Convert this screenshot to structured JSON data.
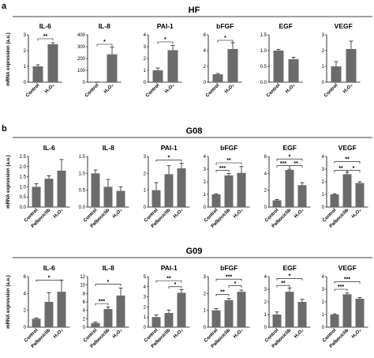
{
  "figure": {
    "panel_a_letter": "a",
    "panel_b_letter": "b",
    "sections": [
      "HF",
      "G08",
      "G09"
    ],
    "ylabel": "mRNA expression (a.u.)"
  },
  "colors": {
    "bar": "#6b6b6b",
    "axis": "#000000"
  },
  "chart_data": [
    {
      "section": "HF",
      "title": "IL-6",
      "type": "bar",
      "categories": [
        "Control",
        "H₂O₂"
      ],
      "values": [
        1.0,
        2.4
      ],
      "errors": [
        0.1,
        0.1
      ],
      "ylim": [
        0,
        3
      ],
      "ticks": [
        "0",
        "1",
        "2",
        "3"
      ],
      "sig": [
        {
          "from": 0,
          "to": 1,
          "label": "**",
          "level": 2.75
        }
      ]
    },
    {
      "section": "HF",
      "title": "IL-8",
      "type": "bar",
      "categories": [
        "Control",
        "H₂O₂"
      ],
      "values": [
        1.0,
        235
      ],
      "errors": [
        0.3,
        60
      ],
      "ylim": [
        0,
        400
      ],
      "ticks": [
        "0",
        "100",
        "200",
        "300",
        "400"
      ],
      "sig": [
        {
          "from": 0,
          "to": 1,
          "label": "*",
          "level": 320
        }
      ]
    },
    {
      "section": "HF",
      "title": "PAI-1",
      "type": "bar",
      "categories": [
        "Control",
        "H₂O₂"
      ],
      "values": [
        1.0,
        2.7
      ],
      "errors": [
        0.2,
        0.4
      ],
      "ylim": [
        0,
        4
      ],
      "ticks": [
        "0",
        "1",
        "2",
        "3",
        "4"
      ],
      "sig": [
        {
          "from": 0,
          "to": 1,
          "label": "*",
          "level": 3.4
        }
      ]
    },
    {
      "section": "HF",
      "title": "bFGF",
      "type": "bar",
      "categories": [
        "Control",
        "H₂O₂"
      ],
      "values": [
        1.0,
        4.2
      ],
      "errors": [
        0.1,
        0.8
      ],
      "ylim": [
        0,
        6
      ],
      "ticks": [
        "0",
        "2",
        "4",
        "6"
      ],
      "sig": [
        {
          "from": 0,
          "to": 1,
          "label": "*",
          "level": 5.3
        }
      ]
    },
    {
      "section": "HF",
      "title": "EGF",
      "type": "bar",
      "categories": [
        "Control",
        "H₂O₂"
      ],
      "values": [
        1.0,
        0.73
      ],
      "errors": [
        0.04,
        0.06
      ],
      "ylim": [
        0,
        1.5
      ],
      "ticks": [
        "0.0",
        "0.5",
        "1.0",
        "1.5"
      ],
      "sig": []
    },
    {
      "section": "HF",
      "title": "VEGF",
      "type": "bar",
      "categories": [
        "Control",
        "H₂O₂"
      ],
      "values": [
        1.0,
        2.1
      ],
      "errors": [
        0.3,
        0.5
      ],
      "ylim": [
        0,
        3
      ],
      "ticks": [
        "0",
        "1",
        "2",
        "3"
      ],
      "sig": []
    },
    {
      "section": "G08",
      "title": "IL-6",
      "type": "bar",
      "categories": [
        "Control",
        "Palbociclib",
        "H₂O₂"
      ],
      "values": [
        1.0,
        1.4,
        1.8
      ],
      "errors": [
        0.15,
        0.15,
        0.55
      ],
      "ylim": [
        0,
        2.5
      ],
      "ticks": [
        "0.0",
        "0.5",
        "1.0",
        "1.5",
        "2.0",
        "2.5"
      ],
      "sig": []
    },
    {
      "section": "G08",
      "title": "IL-8",
      "type": "bar",
      "categories": [
        "Control",
        "Palbociclib",
        "H₂O₂"
      ],
      "values": [
        1.0,
        0.6,
        0.48
      ],
      "errors": [
        0.1,
        0.22,
        0.12
      ],
      "ylim": [
        0,
        1.5
      ],
      "ticks": [
        "0.0",
        "0.5",
        "1.0",
        "1.5"
      ],
      "sig": []
    },
    {
      "section": "G08",
      "title": "PAI-1",
      "type": "bar",
      "categories": [
        "Control",
        "Palbociclib",
        "H₂O₂"
      ],
      "values": [
        1.0,
        1.95,
        2.3
      ],
      "errors": [
        0.45,
        0.5,
        0.3
      ],
      "ylim": [
        0,
        3
      ],
      "ticks": [
        "0",
        "1",
        "2",
        "3"
      ],
      "sig": [
        {
          "from": 0,
          "to": 2,
          "label": "*",
          "level": 2.8
        }
      ]
    },
    {
      "section": "G08",
      "title": "bFGF",
      "type": "bar",
      "categories": [
        "Control",
        "Palbociclib",
        "H₂O₂"
      ],
      "values": [
        1.0,
        2.5,
        2.7
      ],
      "errors": [
        0.05,
        0.15,
        0.5
      ],
      "ylim": [
        0,
        4
      ],
      "ticks": [
        "0",
        "1",
        "2",
        "3",
        "4"
      ],
      "sig": [
        {
          "from": 0,
          "to": 1,
          "label": "***",
          "level": 2.9
        },
        {
          "from": 0,
          "to": 2,
          "label": "**",
          "level": 3.5
        }
      ]
    },
    {
      "section": "G08",
      "title": "EGF",
      "type": "bar",
      "categories": [
        "Control",
        "Palbociclib",
        "H₂O₂"
      ],
      "values": [
        0.8,
        4.4,
        2.6
      ],
      "errors": [
        0.1,
        0.1,
        0.3
      ],
      "ylim": [
        0,
        6
      ],
      "ticks": [
        "0",
        "2",
        "4",
        "6"
      ],
      "sig": [
        {
          "from": 0,
          "to": 1,
          "label": "***",
          "level": 4.9
        },
        {
          "from": 1,
          "to": 2,
          "label": "**",
          "level": 4.9
        },
        {
          "from": 0,
          "to": 2,
          "label": "*",
          "level": 5.7
        }
      ]
    },
    {
      "section": "G08",
      "title": "VEGF",
      "type": "bar",
      "categories": [
        "Control",
        "Palbociclib",
        "H₂O₂"
      ],
      "values": [
        1.0,
        2.6,
        1.9
      ],
      "errors": [
        0.05,
        0.15,
        0.1
      ],
      "ylim": [
        0,
        4
      ],
      "ticks": [
        "0",
        "1",
        "2",
        "3",
        "4"
      ],
      "sig": [
        {
          "from": 0,
          "to": 1,
          "label": "**",
          "level": 2.9
        },
        {
          "from": 1,
          "to": 2,
          "label": "*",
          "level": 2.9
        },
        {
          "from": 0,
          "to": 2,
          "label": "**",
          "level": 3.6
        }
      ]
    },
    {
      "section": "G09",
      "title": "IL-6",
      "type": "bar",
      "categories": [
        "Control",
        "Palbociclib",
        "H₂O₂"
      ],
      "values": [
        1.0,
        3.0,
        4.2
      ],
      "errors": [
        0.1,
        1.1,
        1.4
      ],
      "ylim": [
        0,
        6
      ],
      "ticks": [
        "0",
        "2",
        "4",
        "6"
      ],
      "sig": [
        {
          "from": 0,
          "to": 2,
          "label": "*",
          "level": 5.6
        }
      ]
    },
    {
      "section": "G09",
      "title": "IL-8",
      "type": "bar",
      "categories": [
        "Control",
        "Palbociclib",
        "H₂O₂"
      ],
      "values": [
        1.0,
        4.3,
        7.5
      ],
      "errors": [
        0.2,
        0.5,
        1.8
      ],
      "ylim": [
        0,
        12
      ],
      "ticks": [
        "0",
        "2",
        "4",
        "6",
        "8",
        "10",
        "12"
      ],
      "sig": [
        {
          "from": 0,
          "to": 1,
          "label": "***",
          "level": 5.6
        },
        {
          "from": 0,
          "to": 2,
          "label": "*",
          "level": 10.2
        }
      ]
    },
    {
      "section": "G09",
      "title": "PAI-1",
      "type": "bar",
      "categories": [
        "Control",
        "Palbociclib",
        "H₂O₂"
      ],
      "values": [
        1.0,
        1.4,
        3.4
      ],
      "errors": [
        0.2,
        0.3,
        0.3
      ],
      "ylim": [
        0,
        5
      ],
      "ticks": [
        "0",
        "1",
        "2",
        "3",
        "4",
        "5"
      ],
      "sig": [
        {
          "from": 1,
          "to": 2,
          "label": "*",
          "level": 4.0
        },
        {
          "from": 0,
          "to": 2,
          "label": "**",
          "level": 4.6
        }
      ]
    },
    {
      "section": "G09",
      "title": "bFGF",
      "type": "bar",
      "categories": [
        "Control",
        "Palbociclib",
        "H₂O₂"
      ],
      "values": [
        1.0,
        1.6,
        2.1
      ],
      "errors": [
        0.1,
        0.1,
        0.1
      ],
      "ylim": [
        0,
        3
      ],
      "ticks": [
        "0",
        "1",
        "2",
        "3"
      ],
      "sig": [
        {
          "from": 0,
          "to": 1,
          "label": "**",
          "level": 1.95
        },
        {
          "from": 1,
          "to": 2,
          "label": "*",
          "level": 2.45
        },
        {
          "from": 0,
          "to": 2,
          "label": "***",
          "level": 2.85
        }
      ]
    },
    {
      "section": "G09",
      "title": "EGF",
      "type": "bar",
      "categories": [
        "Control",
        "Palbociclib",
        "H₂O₂"
      ],
      "values": [
        1.0,
        2.8,
        2.0
      ],
      "errors": [
        0.2,
        0.3,
        0.2
      ],
      "ylim": [
        0,
        4
      ],
      "ticks": [
        "0",
        "1",
        "2",
        "3",
        "4"
      ],
      "sig": [
        {
          "from": 0,
          "to": 1,
          "label": "**",
          "level": 3.3
        },
        {
          "from": 0,
          "to": 2,
          "label": "*",
          "level": 3.85
        }
      ]
    },
    {
      "section": "G09",
      "title": "VEGF",
      "type": "bar",
      "categories": [
        "Control",
        "Palbociclib",
        "H₂O₂"
      ],
      "values": [
        1.0,
        2.6,
        2.25
      ],
      "errors": [
        0.05,
        0.1,
        0.1
      ],
      "ylim": [
        0,
        4
      ],
      "ticks": [
        "0",
        "1",
        "2",
        "3",
        "4"
      ],
      "sig": [
        {
          "from": 0,
          "to": 1,
          "label": "***",
          "level": 3.0
        },
        {
          "from": 0,
          "to": 2,
          "label": "***",
          "level": 3.6
        }
      ]
    }
  ]
}
